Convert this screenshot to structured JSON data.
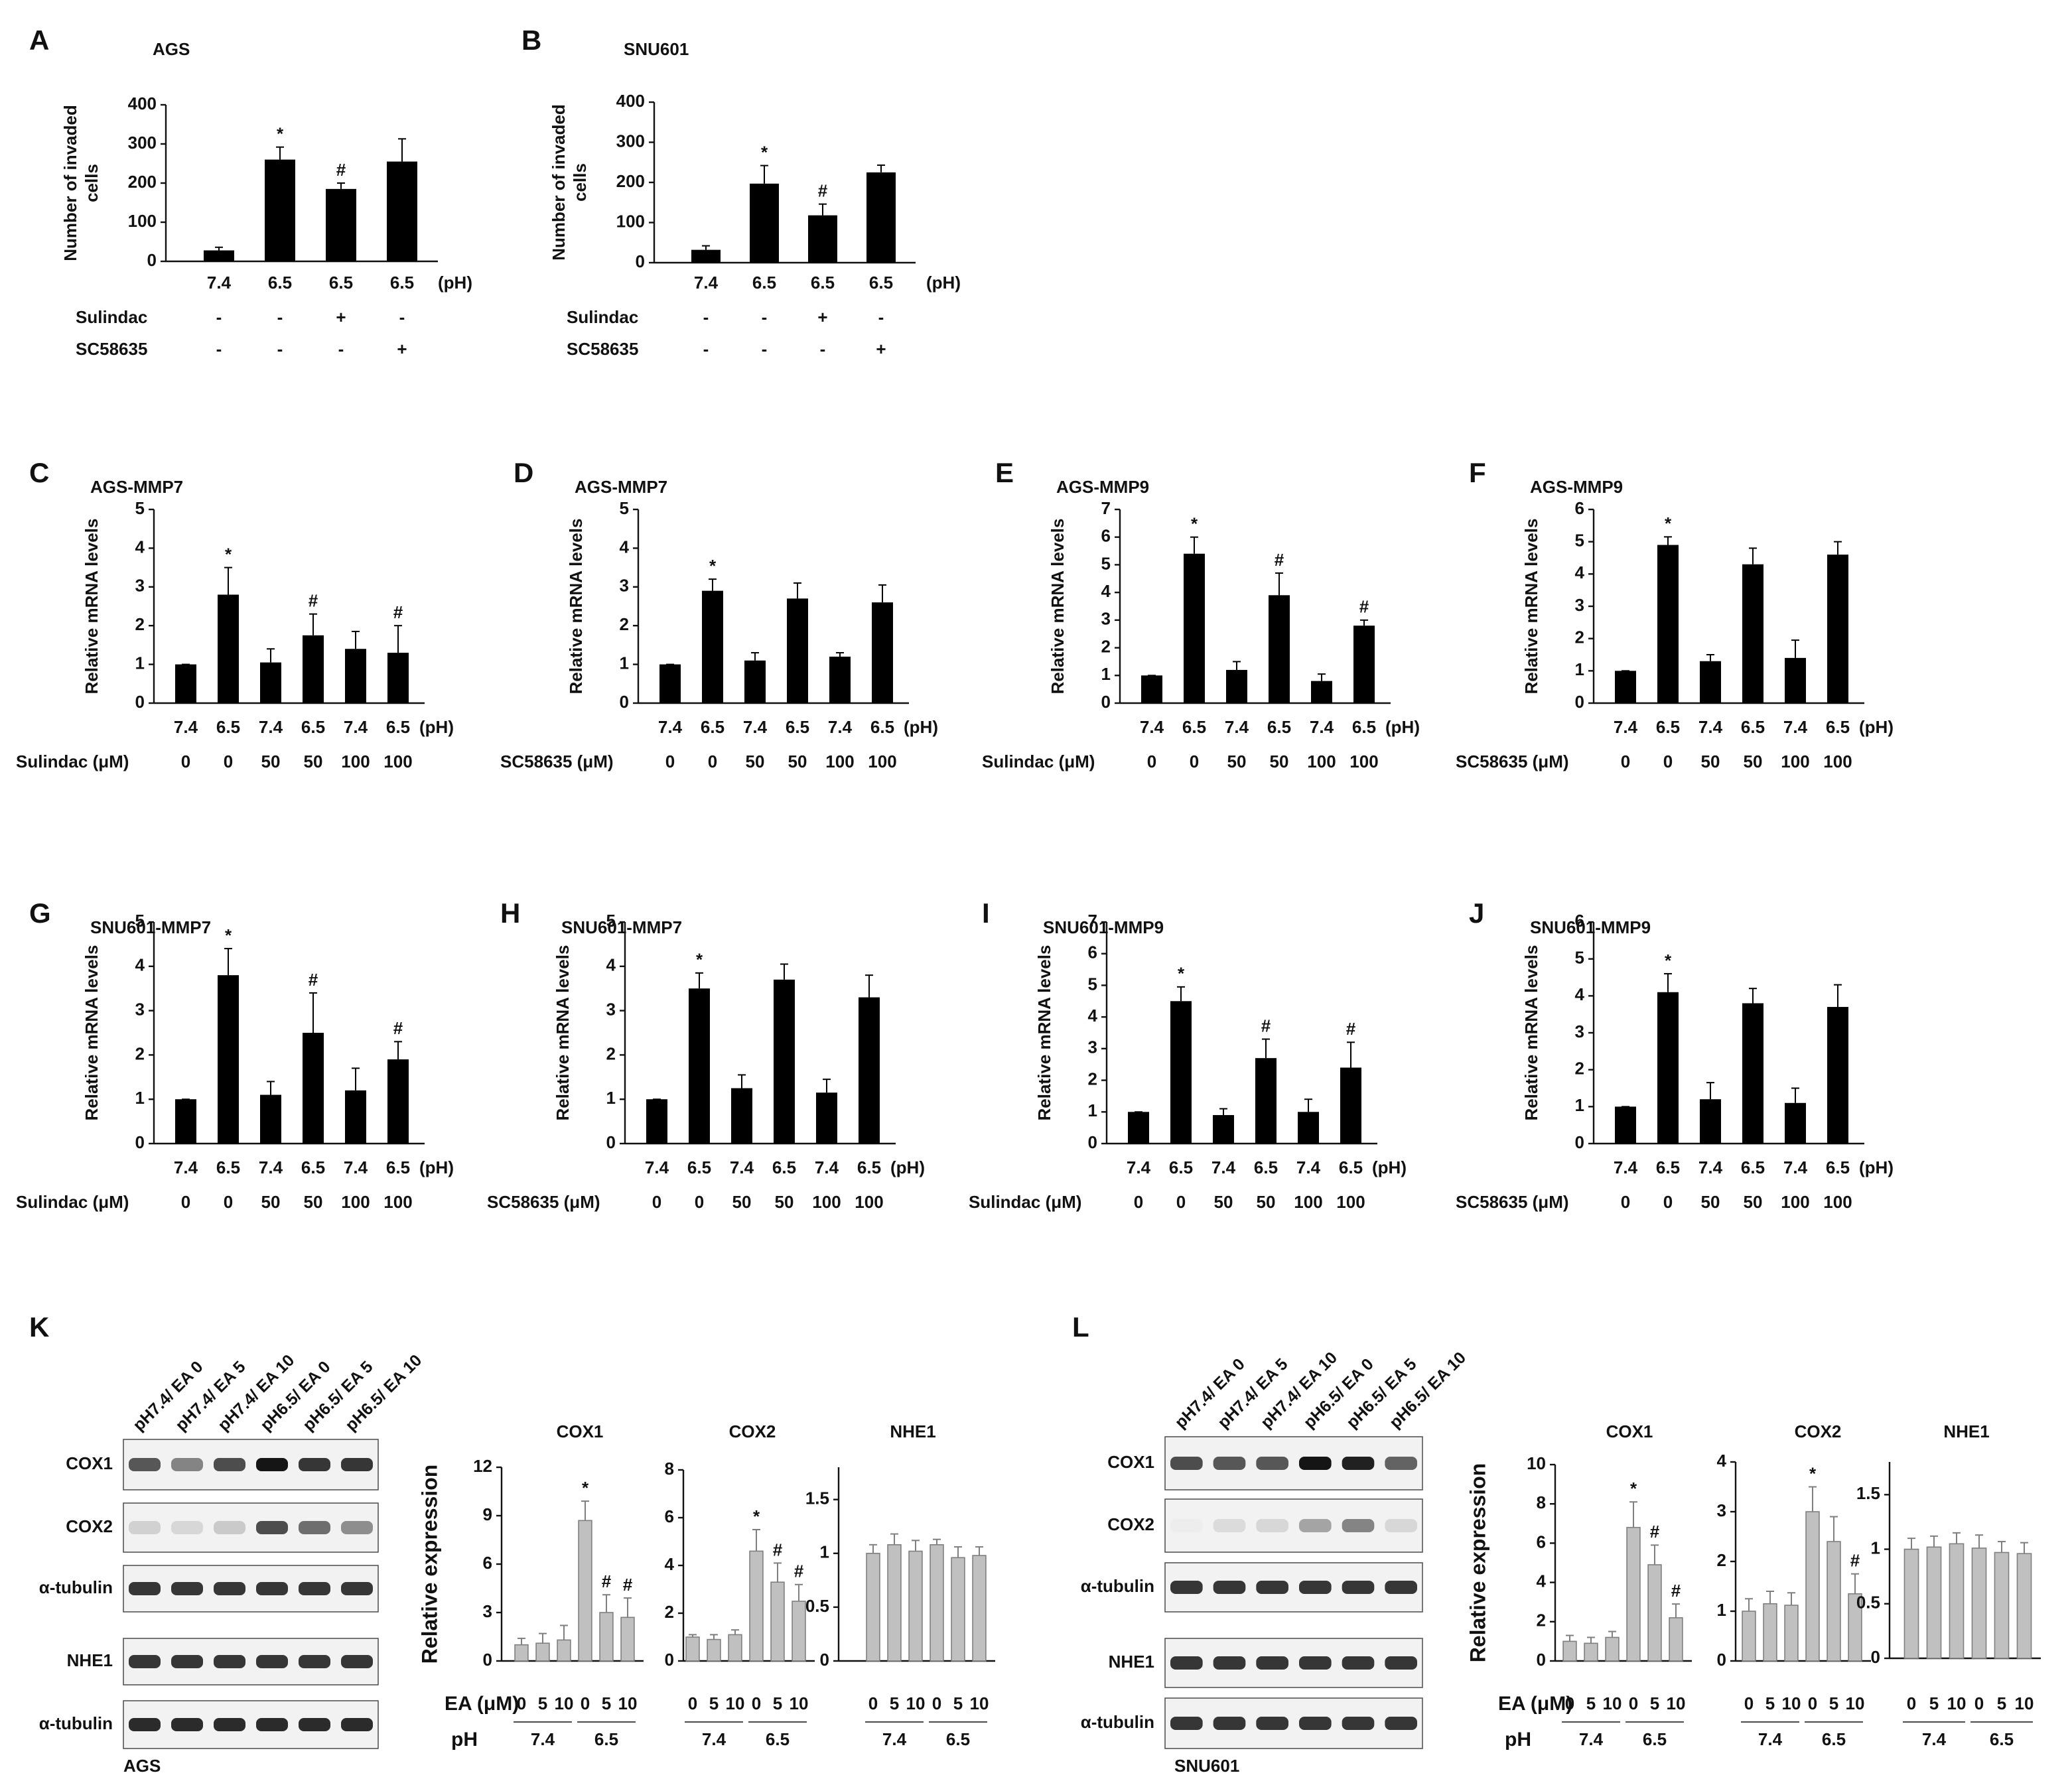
{
  "chart_data": [
    {
      "type": "bar",
      "panel": "A",
      "title": "AGS",
      "ylabel": [
        "Number of invaded",
        "cells"
      ],
      "categories": [
        "7.4",
        "6.5",
        "6.5",
        "6.5"
      ],
      "unit": "(pH)",
      "values": [
        28,
        260,
        185,
        255
      ],
      "errors": [
        8,
        32,
        15,
        58
      ],
      "annotations": [
        null,
        "*",
        "#",
        null
      ],
      "color": "#000000",
      "ylim": [
        0,
        400
      ],
      "yticks": [
        0,
        100,
        200,
        300,
        400
      ],
      "treatments": [
        {
          "name": "Sulindac",
          "levels": [
            "-",
            "-",
            "+",
            "-"
          ]
        },
        {
          "name": "SC58635",
          "levels": [
            "-",
            "-",
            "-",
            "+"
          ]
        }
      ]
    },
    {
      "type": "bar",
      "panel": "B",
      "title": "SNU601",
      "ylabel": [
        "Number of invaded",
        "cells"
      ],
      "categories": [
        "7.4",
        "6.5",
        "6.5",
        "6.5"
      ],
      "unit": "(pH)",
      "values": [
        32,
        197,
        118,
        225
      ],
      "errors": [
        10,
        45,
        28,
        18
      ],
      "annotations": [
        null,
        "*",
        "#",
        null
      ],
      "color": "#000000",
      "ylim": [
        0,
        400
      ],
      "yticks": [
        0,
        100,
        200,
        300,
        400
      ],
      "treatments": [
        {
          "name": "Sulindac",
          "levels": [
            "-",
            "-",
            "+",
            "-"
          ]
        },
        {
          "name": "SC58635",
          "levels": [
            "-",
            "-",
            "-",
            "+"
          ]
        }
      ]
    },
    {
      "type": "bar",
      "panel": "C",
      "title": "AGS-MMP7",
      "ylabel": [
        "Relative mRNA  levels"
      ],
      "categories": [
        "7.4",
        "6.5",
        "7.4",
        "6.5",
        "7.4",
        "6.5"
      ],
      "unit": "(pH)",
      "values": [
        1,
        2.8,
        1.05,
        1.75,
        1.4,
        1.3
      ],
      "errors": [
        0,
        0.7,
        0.35,
        0.55,
        0.45,
        0.7
      ],
      "annotations": [
        null,
        "*",
        null,
        "#",
        null,
        "#"
      ],
      "color": "#000000",
      "ylim": [
        0,
        5
      ],
      "yticks": [
        0,
        1,
        2,
        3,
        4,
        5
      ],
      "treatments": [
        {
          "name": "Sulindac (μM)",
          "levels": [
            "0",
            "0",
            "50",
            "50",
            "100",
            "100"
          ]
        }
      ]
    },
    {
      "type": "bar",
      "panel": "D",
      "title": "AGS-MMP7",
      "ylabel": [
        "Relative mRNA  levels"
      ],
      "categories": [
        "7.4",
        "6.5",
        "7.4",
        "6.5",
        "7.4",
        "6.5"
      ],
      "unit": "(pH)",
      "values": [
        1,
        2.9,
        1.1,
        2.7,
        1.2,
        2.6
      ],
      "errors": [
        0,
        0.3,
        0.2,
        0.4,
        0.1,
        0.45
      ],
      "annotations": [
        null,
        "*",
        null,
        null,
        null,
        null
      ],
      "color": "#000000",
      "ylim": [
        0,
        5
      ],
      "yticks": [
        0,
        1,
        2,
        3,
        4,
        5
      ],
      "treatments": [
        {
          "name": "SC58635 (μM)",
          "levels": [
            "0",
            "0",
            "50",
            "50",
            "100",
            "100"
          ]
        }
      ]
    },
    {
      "type": "bar",
      "panel": "E",
      "title": "AGS-MMP9",
      "ylabel": [
        "Relative mRNA  levels"
      ],
      "categories": [
        "7.4",
        "6.5",
        "7.4",
        "6.5",
        "7.4",
        "6.5"
      ],
      "unit": "(pH)",
      "values": [
        1,
        5.4,
        1.2,
        3.9,
        0.8,
        2.8
      ],
      "errors": [
        0,
        0.6,
        0.3,
        0.8,
        0.25,
        0.2
      ],
      "annotations": [
        null,
        "*",
        null,
        "#",
        null,
        "#"
      ],
      "color": "#000000",
      "ylim": [
        0,
        7
      ],
      "yticks": [
        0,
        1,
        2,
        3,
        4,
        5,
        6,
        7
      ],
      "treatments": [
        {
          "name": "Sulindac (μM)",
          "levels": [
            "0",
            "0",
            "50",
            "50",
            "100",
            "100"
          ]
        }
      ]
    },
    {
      "type": "bar",
      "panel": "F",
      "title": "AGS-MMP9",
      "ylabel": [
        "Relative mRNA  levels"
      ],
      "categories": [
        "7.4",
        "6.5",
        "7.4",
        "6.5",
        "7.4",
        "6.5"
      ],
      "unit": "(pH)",
      "values": [
        1,
        4.9,
        1.3,
        4.3,
        1.4,
        4.6
      ],
      "errors": [
        0,
        0.25,
        0.2,
        0.5,
        0.55,
        0.4
      ],
      "annotations": [
        null,
        "*",
        null,
        null,
        null,
        null
      ],
      "color": "#000000",
      "ylim": [
        0,
        6
      ],
      "yticks": [
        0,
        1,
        2,
        3,
        4,
        5,
        6
      ],
      "treatments": [
        {
          "name": "SC58635 (μM)",
          "levels": [
            "0",
            "0",
            "50",
            "50",
            "100",
            "100"
          ]
        }
      ]
    },
    {
      "type": "bar",
      "panel": "G",
      "title": "SNU601-MMP7",
      "ylabel": [
        "Relative mRNA  levels"
      ],
      "categories": [
        "7.4",
        "6.5",
        "7.4",
        "6.5",
        "7.4",
        "6.5"
      ],
      "unit": "(pH)",
      "values": [
        1,
        3.8,
        1.1,
        2.5,
        1.2,
        1.9
      ],
      "errors": [
        0,
        0.6,
        0.3,
        0.9,
        0.5,
        0.4
      ],
      "annotations": [
        null,
        "*",
        null,
        "#",
        null,
        "#"
      ],
      "color": "#000000",
      "ylim": [
        0,
        5
      ],
      "yticks": [
        0,
        1,
        2,
        3,
        4,
        5
      ],
      "treatments": [
        {
          "name": "Sulindac (μM)",
          "levels": [
            "0",
            "0",
            "50",
            "50",
            "100",
            "100"
          ]
        }
      ]
    },
    {
      "type": "bar",
      "panel": "H",
      "title": "SNU601-MMP7",
      "ylabel": [
        "Relative mRNA  levels"
      ],
      "categories": [
        "7.4",
        "6.5",
        "7.4",
        "6.5",
        "7.4",
        "6.5"
      ],
      "unit": "(pH)",
      "values": [
        1,
        3.5,
        1.25,
        3.7,
        1.15,
        3.3
      ],
      "errors": [
        0,
        0.35,
        0.3,
        0.35,
        0.3,
        0.5
      ],
      "annotations": [
        null,
        "*",
        null,
        null,
        null,
        null
      ],
      "color": "#000000",
      "ylim": [
        0,
        5
      ],
      "yticks": [
        0,
        1,
        2,
        3,
        4,
        5
      ],
      "treatments": [
        {
          "name": "SC58635 (μM)",
          "levels": [
            "0",
            "0",
            "50",
            "50",
            "100",
            "100"
          ]
        }
      ]
    },
    {
      "type": "bar",
      "panel": "I",
      "title": "SNU601-MMP9",
      "ylabel": [
        "Relative mRNA  levels"
      ],
      "categories": [
        "7.4",
        "6.5",
        "7.4",
        "6.5",
        "7.4",
        "6.5"
      ],
      "unit": "(pH)",
      "values": [
        1,
        4.5,
        0.9,
        2.7,
        1,
        2.4
      ],
      "errors": [
        0,
        0.45,
        0.2,
        0.6,
        0.4,
        0.8
      ],
      "annotations": [
        null,
        "*",
        null,
        "#",
        null,
        "#"
      ],
      "color": "#000000",
      "ylim": [
        0,
        7
      ],
      "yticks": [
        0,
        1,
        2,
        3,
        4,
        5,
        6,
        7
      ],
      "treatments": [
        {
          "name": "Sulindac (μM)",
          "levels": [
            "0",
            "0",
            "50",
            "50",
            "100",
            "100"
          ]
        }
      ]
    },
    {
      "type": "bar",
      "panel": "J",
      "title": "SNU601-MMP9",
      "ylabel": [
        "Relative mRNA  levels"
      ],
      "categories": [
        "7.4",
        "6.5",
        "7.4",
        "6.5",
        "7.4",
        "6.5"
      ],
      "unit": "(pH)",
      "values": [
        1,
        4.1,
        1.2,
        3.8,
        1.1,
        3.7
      ],
      "errors": [
        0,
        0.5,
        0.45,
        0.4,
        0.4,
        0.6
      ],
      "annotations": [
        null,
        "*",
        null,
        null,
        null,
        null
      ],
      "color": "#000000",
      "ylim": [
        0,
        6
      ],
      "yticks": [
        0,
        1,
        2,
        3,
        4,
        5,
        6
      ],
      "treatments": [
        {
          "name": "SC58635 (μM)",
          "levels": [
            "0",
            "0",
            "50",
            "50",
            "100",
            "100"
          ]
        }
      ]
    },
    {
      "type": "bar",
      "title": "COX1",
      "ylabel": [
        "Relative expression"
      ],
      "xlabel": "EA (μM)",
      "group_label": "pH",
      "categories": [
        "0",
        "5",
        "10",
        "0",
        "5",
        "10"
      ],
      "groups": [
        "7.4",
        "6.5"
      ],
      "values": [
        1,
        1.1,
        1.3,
        8.7,
        3,
        2.7
      ],
      "errors": [
        0.4,
        0.6,
        0.9,
        1.2,
        1.1,
        1.2
      ],
      "annotations": [
        null,
        null,
        null,
        "*",
        "#",
        "#"
      ],
      "color": "#c0c0c0",
      "ylim": [
        0,
        12
      ],
      "yticks": [
        0,
        3,
        6,
        9,
        12
      ]
    },
    {
      "type": "bar",
      "title": "COX2",
      "categories": [
        "0",
        "5",
        "10",
        "0",
        "5",
        "10"
      ],
      "groups": [
        "7.4",
        "6.5"
      ],
      "values": [
        1,
        0.9,
        1.1,
        4.6,
        3.3,
        2.5
      ],
      "errors": [
        0.1,
        0.2,
        0.2,
        0.9,
        0.8,
        0.7
      ],
      "annotations": [
        null,
        null,
        null,
        "*",
        "#",
        "#"
      ],
      "color": "#c0c0c0",
      "ylim": [
        0,
        8
      ],
      "yticks": [
        0,
        2,
        4,
        6,
        8
      ]
    },
    {
      "type": "bar",
      "title": "NHE1",
      "categories": [
        "0",
        "5",
        "10",
        "0",
        "5",
        "10"
      ],
      "groups": [
        "7.4",
        "6.5"
      ],
      "values": [
        1,
        1.08,
        1.02,
        1.08,
        0.96,
        0.98
      ],
      "errors": [
        0.08,
        0.1,
        0.1,
        0.05,
        0.1,
        0.08
      ],
      "annotations": [
        null,
        null,
        null,
        null,
        null,
        null
      ],
      "color": "#c0c0c0",
      "ylim": [
        0,
        1.8
      ],
      "yticks": [
        0,
        0.5,
        1,
        1.5
      ]
    },
    {
      "type": "bar",
      "title": "COX1",
      "ylabel": [
        "Relative expression"
      ],
      "xlabel": "EA (μM)",
      "group_label": "pH",
      "categories": [
        "0",
        "5",
        "10",
        "0",
        "5",
        "10"
      ],
      "groups": [
        "7.4",
        "6.5"
      ],
      "values": [
        1,
        0.9,
        1.2,
        6.8,
        4.9,
        2.2
      ],
      "errors": [
        0.3,
        0.3,
        0.3,
        1.3,
        1,
        0.7
      ],
      "annotations": [
        null,
        null,
        null,
        "*",
        "#",
        "#"
      ],
      "color": "#c0c0c0",
      "ylim": [
        0,
        10
      ],
      "yticks": [
        0,
        2,
        4,
        6,
        8,
        10
      ]
    },
    {
      "type": "bar",
      "title": "COX2",
      "categories": [
        "0",
        "5",
        "10",
        "0",
        "5",
        "10"
      ],
      "groups": [
        "7.4",
        "6.5"
      ],
      "values": [
        1,
        1.15,
        1.12,
        3,
        2.4,
        1.35
      ],
      "errors": [
        0.25,
        0.25,
        0.25,
        0.5,
        0.5,
        0.4
      ],
      "annotations": [
        null,
        null,
        null,
        "*",
        null,
        "#"
      ],
      "color": "#c0c0c0",
      "ylim": [
        0,
        4
      ],
      "yticks": [
        0,
        1,
        2,
        3,
        4
      ]
    },
    {
      "type": "bar",
      "title": "NHE1",
      "categories": [
        "0",
        "5",
        "10",
        "0",
        "5",
        "10"
      ],
      "groups": [
        "7.4",
        "6.5"
      ],
      "values": [
        1,
        1.02,
        1.05,
        1.01,
        0.97,
        0.96
      ],
      "errors": [
        0.1,
        0.1,
        0.1,
        0.12,
        0.1,
        0.1
      ],
      "annotations": [
        null,
        null,
        null,
        null,
        null,
        null
      ],
      "color": "#c0c0c0",
      "ylim": [
        0,
        1.8
      ],
      "yticks": [
        0,
        0.5,
        1,
        1.5
      ]
    }
  ],
  "blots": [
    {
      "panel": "K",
      "lanes": [
        "pH7.4/ EA 0",
        "pH7.4/ EA 5",
        "pH7.4/ EA 10",
        "pH6.5/ EA 0",
        "pH6.5/ EA 5",
        "pH6.5/ EA 10"
      ],
      "rows": [
        "COX1",
        "COX2",
        "α-tubulin",
        "NHE1",
        "α-tubulin"
      ],
      "cell_line": "AGS"
    },
    {
      "panel": "L",
      "lanes": [
        "pH7.4/ EA 0",
        "pH7.4/ EA 5",
        "pH7.4/ EA 10",
        "pH6.5/ EA 0",
        "pH6.5/ EA 5",
        "pH6.5/ EA 10"
      ],
      "rows": [
        "COX1",
        "COX2",
        "α-tubulin",
        "NHE1",
        "α-tubulin"
      ],
      "cell_line": "SNU601"
    }
  ]
}
